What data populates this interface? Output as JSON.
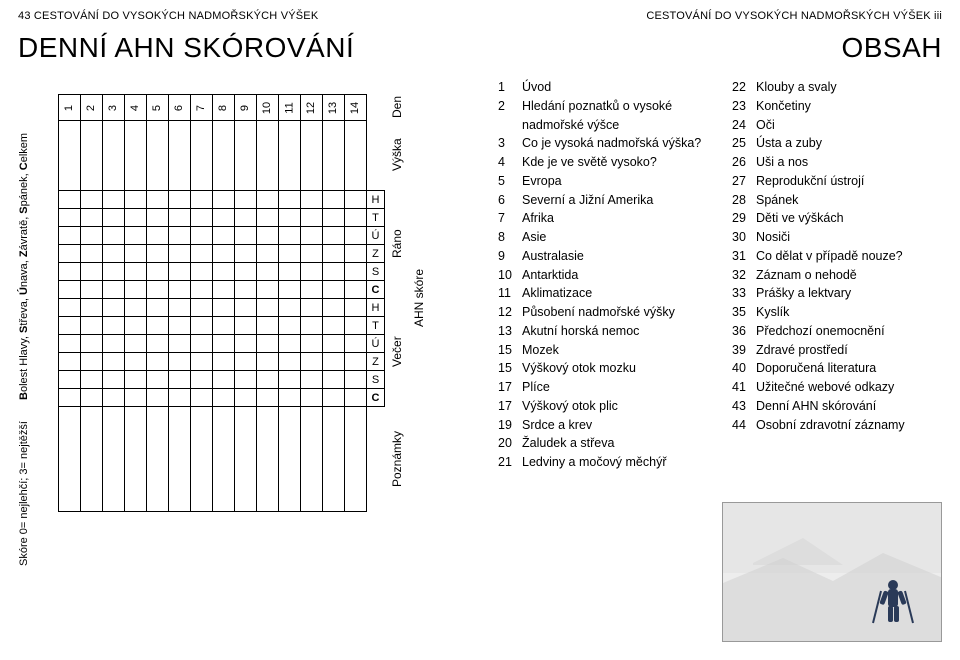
{
  "left": {
    "header": "43 CESTOVÁNÍ DO VYSOKÝCH NADMOŘSKÝCH VÝŠEK",
    "title": "DENNÍ AHN SKÓROVÁNÍ",
    "col_den": "Den",
    "col_vyska": "Výška",
    "group_rano": "Ráno",
    "group_ahn": "AHN skóre",
    "group_vecer": "Večer",
    "col_poznamky": "Poznámky",
    "score_cols": [
      "H",
      "T",
      "Ú",
      "Z",
      "S",
      "C",
      "H",
      "T",
      "Ú",
      "Z",
      "S",
      "C"
    ],
    "days": [
      "1",
      "2",
      "3",
      "4",
      "5",
      "6",
      "7",
      "8",
      "9",
      "10",
      "11",
      "12",
      "13",
      "14"
    ],
    "legend_left": "Bolest Hlavy, Střeva, Únava, Závratě, Spánek, Celkem",
    "legend_right": "Skóre 0= nejlehčí; 3= nejtěžší"
  },
  "right": {
    "header": "CESTOVÁNÍ DO VYSOKÝCH NADMOŘSKÝCH VÝŠEK iii",
    "title": "OBSAH",
    "toc_left": [
      {
        "n": "1",
        "t": "Úvod"
      },
      {
        "n": "2",
        "t": "Hledání poznatků o vysoké nadmořské výšce"
      },
      {
        "n": "3",
        "t": "Co je vysoká nadmořská výška?"
      },
      {
        "n": "4",
        "t": "Kde je ve světě vysoko?"
      },
      {
        "n": "5",
        "t": "Evropa"
      },
      {
        "n": "6",
        "t": "Severní a Jižní Amerika"
      },
      {
        "n": "7",
        "t": "Afrika"
      },
      {
        "n": "8",
        "t": "Asie"
      },
      {
        "n": "9",
        "t": "Australasie"
      },
      {
        "n": "10",
        "t": "Antarktida"
      },
      {
        "n": "11",
        "t": "Aklimatizace"
      },
      {
        "n": "12",
        "t": "Působení nadmořské výšky"
      },
      {
        "n": "13",
        "t": "Akutní horská nemoc"
      },
      {
        "n": "15",
        "t": "Mozek"
      },
      {
        "n": "15",
        "t": "Výškový otok mozku"
      },
      {
        "n": "17",
        "t": "Plíce"
      },
      {
        "n": "17",
        "t": "Výškový otok plic"
      },
      {
        "n": "19",
        "t": "Srdce a krev"
      },
      {
        "n": "20",
        "t": "Žaludek a střeva"
      },
      {
        "n": "21",
        "t": "Ledviny a močový měchýř"
      }
    ],
    "toc_right": [
      {
        "n": "22",
        "t": "Klouby a svaly"
      },
      {
        "n": "23",
        "t": "Končetiny"
      },
      {
        "n": "24",
        "t": "Oči"
      },
      {
        "n": "25",
        "t": "Ústa a zuby"
      },
      {
        "n": "26",
        "t": "Uši a nos"
      },
      {
        "n": "27",
        "t": "Reprodukční ústrojí"
      },
      {
        "n": "28",
        "t": "Spánek"
      },
      {
        "n": "29",
        "t": "Děti ve výškách"
      },
      {
        "n": "30",
        "t": "Nosiči"
      },
      {
        "n": "31",
        "t": "Co dělat v případě nouze?"
      },
      {
        "n": "32",
        "t": "Záznam o nehodě"
      },
      {
        "n": "33",
        "t": "Prášky a lektvary"
      },
      {
        "n": "35",
        "t": "Kyslík"
      },
      {
        "n": "36",
        "t": "Předchozí onemocnění"
      },
      {
        "n": "39",
        "t": "Zdravé prostředí"
      },
      {
        "n": "40",
        "t": "Doporučená literatura"
      },
      {
        "n": "41",
        "t": "Užitečné webové odkazy"
      },
      {
        "n": "43",
        "t": "Denní AHN skórování"
      },
      {
        "n": "44",
        "t": "Osobní zdravotní záznamy"
      }
    ],
    "photo": {
      "sky": "#e6e6e6",
      "snow": "#ededed",
      "shadow": "#cfcfcf",
      "person": "#2a3a58"
    }
  }
}
